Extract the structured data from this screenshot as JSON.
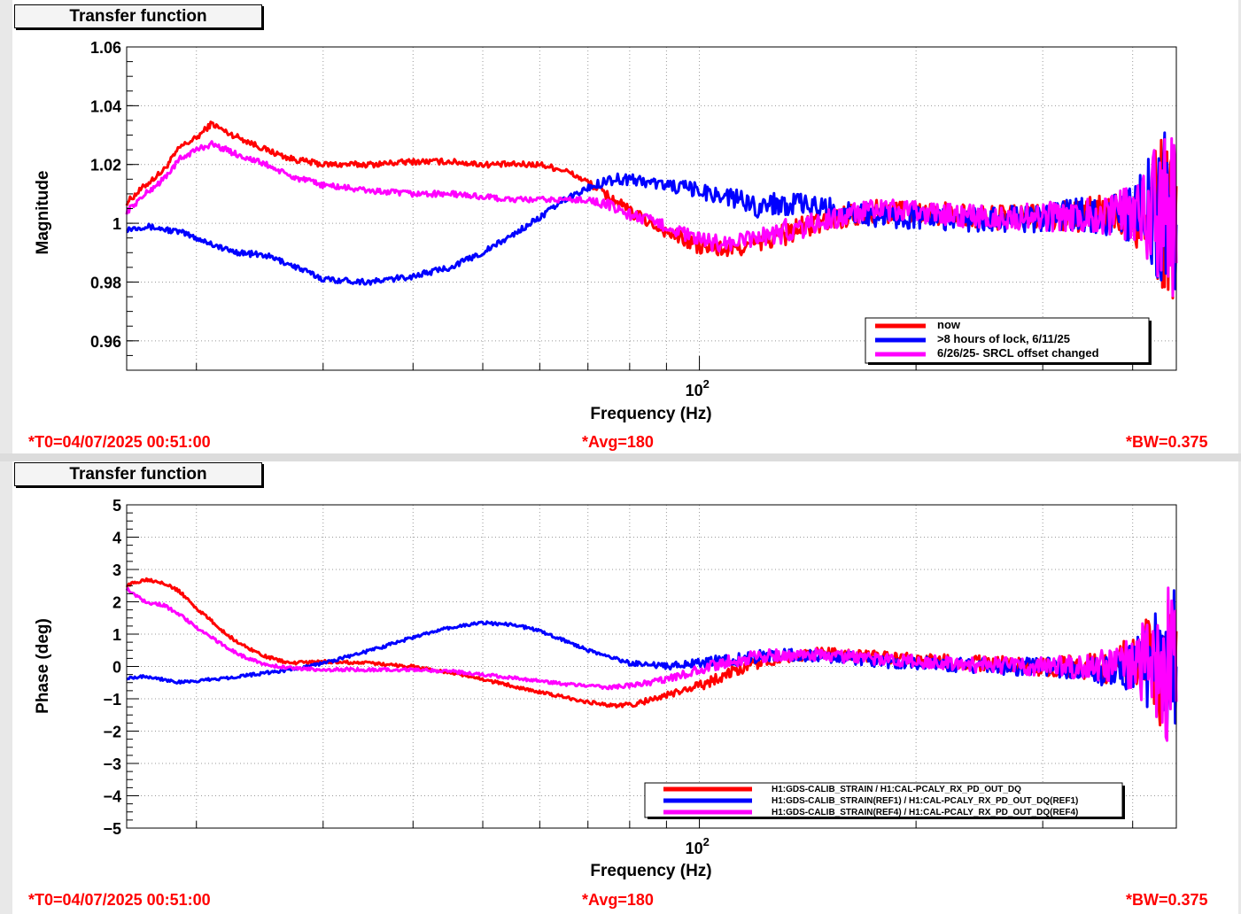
{
  "panels": [
    {
      "title": "Transfer function",
      "footer": {
        "t0": "*T0=04/07/2025 00:51:00",
        "avg": "*Avg=180",
        "bw": "*BW=0.375"
      },
      "legend": [
        "now",
        ">8 hours of lock, 6/11/25",
        "6/26/25- SRCL offset changed"
      ]
    },
    {
      "title": "Transfer function",
      "footer": {
        "t0": "*T0=04/07/2025 00:51:00",
        "avg": "*Avg=180",
        "bw": "*BW=0.375"
      },
      "legend": [
        "H1:GDS-CALIB_STRAIN / H1:CAL-PCALY_RX_PD_OUT_DQ",
        "H1:GDS-CALIB_STRAIN(REF1) / H1:CAL-PCALY_RX_PD_OUT_DQ(REF1)",
        "H1:GDS-CALIB_STRAIN(REF4) / H1:CAL-PCALY_RX_PD_OUT_DQ(REF4)"
      ]
    }
  ],
  "colors": {
    "red": "#ff0000",
    "blue": "#0000ff",
    "magenta": "#ff00ff"
  },
  "chart_data": [
    {
      "type": "line",
      "xlabel": "Frequency (Hz)",
      "ylabel": "Magnitude",
      "xscale": "log",
      "xlim": [
        16,
        460
      ],
      "ylim": [
        0.95,
        1.06
      ],
      "yticks": [
        0.96,
        0.98,
        1,
        1.02,
        1.04,
        1.06
      ],
      "ytick_labels": [
        "0.96",
        "0.98",
        "1",
        "1.02",
        "1.04",
        "1.06"
      ],
      "xtick_label": "10^2",
      "grid": true,
      "legend_position": "bottom-right",
      "series": [
        {
          "color": "red",
          "x": [
            16,
            17,
            18,
            19,
            20,
            21,
            22,
            23,
            25,
            27,
            30,
            35,
            40,
            45,
            50,
            55,
            60,
            65,
            70,
            75,
            80,
            90,
            100,
            110,
            120,
            130,
            150,
            170,
            200,
            250,
            300,
            350,
            400,
            450
          ],
          "y": [
            1.007,
            1.013,
            1.018,
            1.026,
            1.029,
            1.034,
            1.031,
            1.029,
            1.025,
            1.022,
            1.02,
            1.02,
            1.021,
            1.021,
            1.02,
            1.02,
            1.02,
            1.018,
            1.014,
            1.009,
            1.004,
            0.997,
            0.992,
            0.991,
            0.993,
            0.996,
            1.001,
            1.004,
            1.004,
            1.002,
            1.002,
            1.003,
            1.003,
            1.004
          ],
          "noise": [
            0.001,
            0.001,
            0.001,
            0.001,
            0.001,
            0.001,
            0.001,
            0.001,
            0.001,
            0.001,
            0.001,
            0.001,
            0.001,
            0.001,
            0.001,
            0.001,
            0.001,
            0.001,
            0.001,
            0.002,
            0.002,
            0.002,
            0.003,
            0.003,
            0.003,
            0.004,
            0.004,
            0.004,
            0.004,
            0.004,
            0.005,
            0.006,
            0.01,
            0.03
          ]
        },
        {
          "color": "blue",
          "x": [
            16,
            17,
            18,
            19,
            20,
            21,
            22,
            23,
            25,
            27,
            30,
            35,
            40,
            45,
            50,
            55,
            60,
            65,
            70,
            75,
            80,
            90,
            100,
            110,
            120,
            130,
            150,
            170,
            200,
            250,
            300,
            350,
            400,
            450
          ],
          "y": [
            0.998,
            0.999,
            0.998,
            0.997,
            0.995,
            0.993,
            0.991,
            0.99,
            0.989,
            0.986,
            0.981,
            0.98,
            0.982,
            0.985,
            0.99,
            0.996,
            1.002,
            1.008,
            1.012,
            1.015,
            1.015,
            1.013,
            1.011,
            1.009,
            1.006,
            1.007,
            1.005,
            1.003,
            1.002,
            1.001,
            1.002,
            1.003,
            1.003,
            1.004
          ],
          "noise": [
            0.001,
            0.001,
            0.001,
            0.001,
            0.001,
            0.001,
            0.001,
            0.001,
            0.001,
            0.001,
            0.001,
            0.001,
            0.001,
            0.001,
            0.001,
            0.001,
            0.001,
            0.001,
            0.001,
            0.002,
            0.002,
            0.002,
            0.003,
            0.003,
            0.004,
            0.004,
            0.004,
            0.004,
            0.004,
            0.004,
            0.005,
            0.006,
            0.01,
            0.03
          ]
        },
        {
          "color": "magenta",
          "x": [
            16,
            17,
            18,
            19,
            20,
            21,
            22,
            23,
            25,
            27,
            30,
            35,
            40,
            45,
            50,
            55,
            60,
            65,
            70,
            75,
            80,
            90,
            100,
            110,
            120,
            130,
            150,
            170,
            200,
            250,
            300,
            350,
            400,
            450
          ],
          "y": [
            1.004,
            1.01,
            1.015,
            1.022,
            1.025,
            1.027,
            1.025,
            1.023,
            1.02,
            1.016,
            1.013,
            1.011,
            1.01,
            1.01,
            1.009,
            1.008,
            1.008,
            1.008,
            1.008,
            1.006,
            1.003,
            0.999,
            0.994,
            0.993,
            0.995,
            0.997,
            1.001,
            1.004,
            1.004,
            1.002,
            1.002,
            1.003,
            1.003,
            1.004
          ],
          "noise": [
            0.001,
            0.001,
            0.001,
            0.001,
            0.001,
            0.001,
            0.001,
            0.001,
            0.001,
            0.001,
            0.001,
            0.001,
            0.001,
            0.001,
            0.001,
            0.001,
            0.001,
            0.001,
            0.001,
            0.002,
            0.002,
            0.002,
            0.003,
            0.003,
            0.003,
            0.004,
            0.004,
            0.004,
            0.004,
            0.004,
            0.005,
            0.006,
            0.01,
            0.03
          ]
        }
      ]
    },
    {
      "type": "line",
      "xlabel": "Frequency (Hz)",
      "ylabel": "Phase (deg)",
      "xscale": "log",
      "xlim": [
        16,
        460
      ],
      "ylim": [
        -5,
        5
      ],
      "yticks": [
        -5,
        -4,
        -3,
        -2,
        -1,
        0,
        1,
        2,
        3,
        4,
        5
      ],
      "ytick_labels": [
        "−5",
        "−4",
        "−3",
        "−2",
        "−1",
        "0",
        "1",
        "2",
        "3",
        "4",
        "5"
      ],
      "xtick_label": "10^2",
      "grid": true,
      "legend_position": "bottom-right",
      "series": [
        {
          "color": "red",
          "x": [
            16,
            17,
            18,
            19,
            20,
            21,
            22,
            23,
            25,
            27,
            30,
            35,
            40,
            45,
            50,
            55,
            60,
            65,
            70,
            75,
            80,
            90,
            100,
            110,
            120,
            130,
            150,
            170,
            200,
            250,
            300,
            350,
            400,
            450
          ],
          "y": [
            2.5,
            2.7,
            2.6,
            2.3,
            1.8,
            1.4,
            1.0,
            0.7,
            0.3,
            0.1,
            0.15,
            0.1,
            0.0,
            -0.2,
            -0.4,
            -0.6,
            -0.8,
            -0.95,
            -1.1,
            -1.2,
            -1.2,
            -0.9,
            -0.6,
            -0.2,
            0.1,
            0.3,
            0.4,
            0.3,
            0.2,
            0.1,
            0.0,
            0.0,
            0.1,
            0.0
          ],
          "noise": [
            0.05,
            0.05,
            0.05,
            0.05,
            0.05,
            0.05,
            0.05,
            0.05,
            0.05,
            0.05,
            0.05,
            0.05,
            0.05,
            0.05,
            0.05,
            0.05,
            0.05,
            0.05,
            0.05,
            0.05,
            0.08,
            0.1,
            0.15,
            0.2,
            0.2,
            0.2,
            0.2,
            0.2,
            0.2,
            0.25,
            0.3,
            0.4,
            0.8,
            2.5
          ]
        },
        {
          "color": "blue",
          "x": [
            16,
            17,
            18,
            19,
            20,
            21,
            22,
            23,
            25,
            27,
            30,
            35,
            40,
            45,
            50,
            55,
            60,
            65,
            70,
            75,
            80,
            90,
            100,
            110,
            120,
            130,
            150,
            170,
            200,
            250,
            300,
            350,
            400,
            450
          ],
          "y": [
            -0.35,
            -0.3,
            -0.4,
            -0.5,
            -0.45,
            -0.4,
            -0.35,
            -0.3,
            -0.2,
            -0.1,
            0.1,
            0.5,
            0.9,
            1.2,
            1.35,
            1.3,
            1.1,
            0.8,
            0.5,
            0.3,
            0.1,
            0.0,
            0.1,
            0.2,
            0.3,
            0.35,
            0.3,
            0.2,
            0.1,
            0.0,
            0.0,
            -0.1,
            0.0,
            0.0
          ],
          "noise": [
            0.05,
            0.05,
            0.05,
            0.05,
            0.05,
            0.05,
            0.05,
            0.05,
            0.05,
            0.05,
            0.05,
            0.05,
            0.05,
            0.05,
            0.05,
            0.05,
            0.05,
            0.05,
            0.05,
            0.05,
            0.08,
            0.1,
            0.15,
            0.2,
            0.2,
            0.2,
            0.2,
            0.2,
            0.2,
            0.25,
            0.3,
            0.4,
            0.8,
            2.5
          ]
        },
        {
          "color": "magenta",
          "x": [
            16,
            17,
            18,
            19,
            20,
            21,
            22,
            23,
            25,
            27,
            30,
            35,
            40,
            45,
            50,
            55,
            60,
            65,
            70,
            75,
            80,
            90,
            100,
            110,
            120,
            130,
            150,
            170,
            200,
            250,
            300,
            350,
            400,
            450
          ],
          "y": [
            2.4,
            2.0,
            1.9,
            1.6,
            1.2,
            0.9,
            0.6,
            0.35,
            0.05,
            -0.05,
            -0.1,
            -0.1,
            -0.1,
            -0.15,
            -0.25,
            -0.35,
            -0.45,
            -0.55,
            -0.6,
            -0.65,
            -0.6,
            -0.4,
            -0.1,
            0.15,
            0.3,
            0.35,
            0.35,
            0.25,
            0.15,
            0.05,
            0.0,
            0.0,
            0.1,
            0.0
          ],
          "noise": [
            0.05,
            0.05,
            0.05,
            0.05,
            0.05,
            0.05,
            0.05,
            0.05,
            0.05,
            0.05,
            0.05,
            0.05,
            0.05,
            0.05,
            0.05,
            0.05,
            0.05,
            0.05,
            0.05,
            0.05,
            0.08,
            0.1,
            0.15,
            0.2,
            0.2,
            0.2,
            0.2,
            0.2,
            0.2,
            0.25,
            0.3,
            0.4,
            0.8,
            2.5
          ]
        }
      ]
    }
  ]
}
